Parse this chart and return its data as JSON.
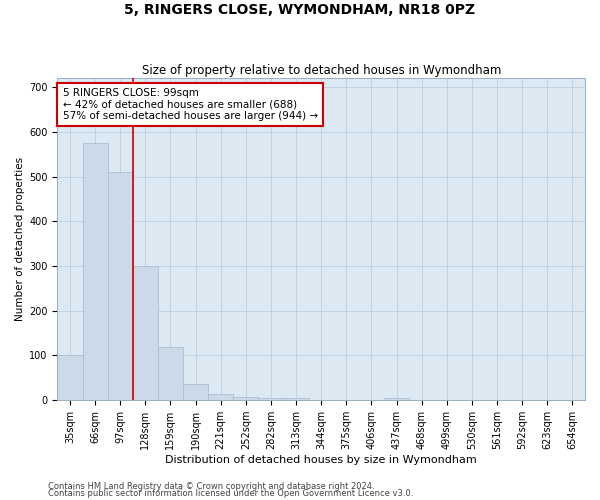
{
  "title": "5, RINGERS CLOSE, WYMONDHAM, NR18 0PZ",
  "subtitle": "Size of property relative to detached houses in Wymondham",
  "xlabel": "Distribution of detached houses by size in Wymondham",
  "ylabel": "Number of detached properties",
  "footnote1": "Contains HM Land Registry data © Crown copyright and database right 2024.",
  "footnote2": "Contains public sector information licensed under the Open Government Licence v3.0.",
  "categories": [
    "35sqm",
    "66sqm",
    "97sqm",
    "128sqm",
    "159sqm",
    "190sqm",
    "221sqm",
    "252sqm",
    "282sqm",
    "313sqm",
    "344sqm",
    "375sqm",
    "406sqm",
    "437sqm",
    "468sqm",
    "499sqm",
    "530sqm",
    "561sqm",
    "592sqm",
    "623sqm",
    "654sqm"
  ],
  "values": [
    100,
    575,
    510,
    300,
    118,
    36,
    15,
    8,
    6,
    5,
    0,
    0,
    0,
    6,
    0,
    0,
    0,
    0,
    0,
    0,
    0
  ],
  "bar_color": "#ccd9e8",
  "bar_edgecolor": "#aabfd4",
  "vline_x": 2.5,
  "vline_color": "#cc0000",
  "annotation_text": "5 RINGERS CLOSE: 99sqm\n← 42% of detached houses are smaller (688)\n57% of semi-detached houses are larger (944) →",
  "annotation_box_facecolor": "#ffffff",
  "annotation_box_edgecolor": "#cc0000",
  "ylim": [
    0,
    720
  ],
  "yticks": [
    0,
    100,
    200,
    300,
    400,
    500,
    600,
    700
  ],
  "bg_color": "#ffffff",
  "axes_bg_color": "#dce8f2",
  "grid_color": "#b8cfe0",
  "title_fontsize": 10,
  "subtitle_fontsize": 8.5,
  "xlabel_fontsize": 8,
  "ylabel_fontsize": 7.5,
  "tick_fontsize": 7,
  "annot_fontsize": 7.5,
  "footnote_fontsize": 6
}
